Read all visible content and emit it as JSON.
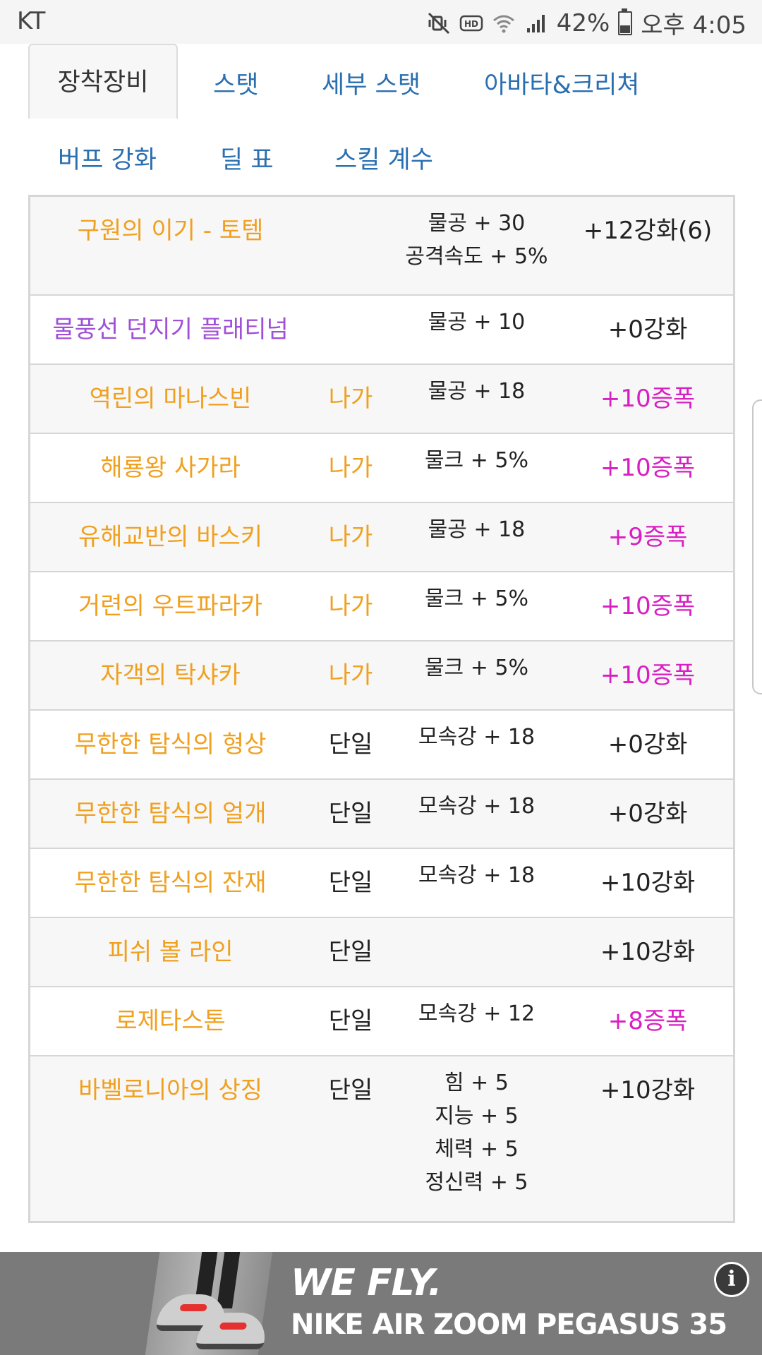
{
  "status_bar": {
    "carrier": "KT",
    "battery": "42%",
    "time": "오후 4:05",
    "icons": [
      "mute-vibrate-icon",
      "hd-icon",
      "wifi-icon",
      "signal-icon",
      "battery-icon"
    ],
    "battery_level": 0.42
  },
  "tabs": [
    {
      "label": "장착장비",
      "active": true
    },
    {
      "label": "스탯"
    },
    {
      "label": "세부 스탯"
    },
    {
      "label": "아바타&크리쳐"
    },
    {
      "label": "버프 강화"
    },
    {
      "label": "딜 표"
    },
    {
      "label": "스킬 계수"
    }
  ],
  "colors": {
    "tab_link": "#2a6fb0",
    "name_orange": "#f0a020",
    "name_purple": "#a04fd8",
    "level_pink": "#d81fc2",
    "ad_background": "#7a7a7a"
  },
  "gear": [
    {
      "name": "구원의 이기 - 토템",
      "name_color": "orange",
      "type": "",
      "stats": [
        "물공 + 30",
        "공격속도 + 5%"
      ],
      "level": "+12강화(6)",
      "level_color": "normal"
    },
    {
      "name": "물풍선 던지기 플래티넘",
      "name_color": "purple",
      "type": "",
      "stats": [
        "물공 + 10"
      ],
      "level": "+0강화",
      "level_color": "normal"
    },
    {
      "name": "역린의 마나스빈",
      "name_color": "orange",
      "type": "나가",
      "stats": [
        "물공 + 18"
      ],
      "level": "+10증폭",
      "level_color": "pink"
    },
    {
      "name": "해룡왕 사가라",
      "name_color": "orange",
      "type": "나가",
      "stats": [
        "물크 + 5%"
      ],
      "level": "+10증폭",
      "level_color": "pink"
    },
    {
      "name": "유해교반의 바스키",
      "name_color": "orange",
      "type": "나가",
      "stats": [
        "물공 + 18"
      ],
      "level": "+9증폭",
      "level_color": "pink"
    },
    {
      "name": "거련의 우트파라카",
      "name_color": "orange",
      "type": "나가",
      "stats": [
        "물크 + 5%"
      ],
      "level": "+10증폭",
      "level_color": "pink"
    },
    {
      "name": "자객의 탁샤카",
      "name_color": "orange",
      "type": "나가",
      "stats": [
        "물크 + 5%"
      ],
      "level": "+10증폭",
      "level_color": "pink"
    },
    {
      "name": "무한한 탐식의 형상",
      "name_color": "orange",
      "type": "단일",
      "stats": [
        "모속강 + 18"
      ],
      "level": "+0강화",
      "level_color": "normal"
    },
    {
      "name": "무한한 탐식의 얼개",
      "name_color": "orange",
      "type": "단일",
      "stats": [
        "모속강 + 18"
      ],
      "level": "+0강화",
      "level_color": "normal"
    },
    {
      "name": "무한한 탐식의 잔재",
      "name_color": "orange",
      "type": "단일",
      "stats": [
        "모속강 + 18"
      ],
      "level": "+10강화",
      "level_color": "normal"
    },
    {
      "name": "피쉬 볼 라인",
      "name_color": "orange",
      "type": "단일",
      "stats": [],
      "level": "+10강화",
      "level_color": "normal"
    },
    {
      "name": "로제타스톤",
      "name_color": "orange",
      "type": "단일",
      "stats": [
        "모속강 + 12"
      ],
      "level": "+8증폭",
      "level_color": "pink"
    },
    {
      "name": "바벨로니아의 상징",
      "name_color": "orange",
      "type": "단일",
      "stats": [
        "힘 + 5",
        "지능 + 5",
        "체력 + 5",
        "정신력 + 5"
      ],
      "level": "+10강화",
      "level_color": "normal"
    }
  ],
  "ad": {
    "tagline": "WE FLY.",
    "product": "NIKE AIR ZOOM PEGASUS 35",
    "info_label": "i"
  }
}
